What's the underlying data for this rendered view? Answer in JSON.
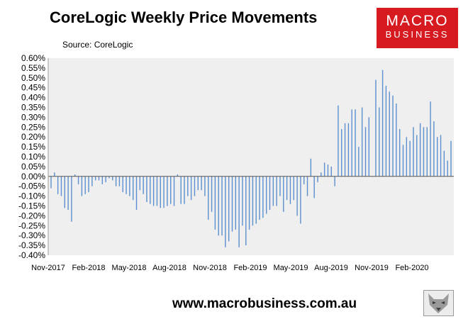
{
  "title": "CoreLogic Weekly Price Movements",
  "source": "Source: CoreLogic",
  "logo": {
    "line1": "MACRO",
    "line2": "BUSINESS",
    "color": "#d71920"
  },
  "footer_url": "www.macrobusiness.com.au",
  "footer_icon": "wolf-icon",
  "chart_data": {
    "type": "bar",
    "ylim": [
      -0.4,
      0.6
    ],
    "y_ticks": [
      "0.60%",
      "0.55%",
      "0.50%",
      "0.45%",
      "0.40%",
      "0.35%",
      "0.30%",
      "0.25%",
      "0.20%",
      "0.15%",
      "0.10%",
      "0.05%",
      "0.00%",
      "-0.05%",
      "-0.10%",
      "-0.15%",
      "-0.20%",
      "-0.25%",
      "-0.30%",
      "-0.35%",
      "-0.40%"
    ],
    "x_ticks": [
      "Nov-2017",
      "Feb-2018",
      "May-2018",
      "Aug-2018",
      "Nov-2018",
      "Feb-2019",
      "May-2019",
      "Aug-2019",
      "Nov-2019",
      "Feb-2020"
    ],
    "bar_color": "#5b8fd0",
    "plot_background": "#efefef",
    "grid": false,
    "values": [
      -0.06,
      0.02,
      -0.09,
      -0.1,
      -0.16,
      -0.17,
      -0.23,
      0.01,
      -0.04,
      -0.1,
      -0.09,
      -0.08,
      -0.05,
      -0.02,
      -0.02,
      -0.04,
      -0.03,
      -0.01,
      -0.02,
      -0.05,
      -0.05,
      -0.08,
      -0.09,
      -0.1,
      -0.12,
      -0.17,
      -0.07,
      -0.09,
      -0.13,
      -0.14,
      -0.15,
      -0.15,
      -0.16,
      -0.16,
      -0.15,
      -0.14,
      -0.15,
      0.01,
      -0.14,
      -0.14,
      -0.1,
      -0.12,
      -0.1,
      -0.07,
      -0.07,
      -0.1,
      -0.22,
      -0.18,
      -0.27,
      -0.3,
      -0.3,
      -0.36,
      -0.33,
      -0.28,
      -0.27,
      -0.36,
      -0.25,
      -0.35,
      -0.27,
      -0.25,
      -0.24,
      -0.22,
      -0.21,
      -0.19,
      -0.17,
      -0.15,
      -0.15,
      -0.1,
      -0.18,
      -0.12,
      -0.14,
      -0.12,
      -0.2,
      -0.24,
      -0.04,
      -0.1,
      0.09,
      -0.11,
      -0.03,
      0.02,
      0.07,
      0.06,
      0.05,
      -0.05,
      0.36,
      0.24,
      0.27,
      0.27,
      0.34,
      0.34,
      0.15,
      0.35,
      0.25,
      0.3,
      0.0,
      0.49,
      0.35,
      0.54,
      0.46,
      0.43,
      0.41,
      0.37,
      0.24,
      0.16,
      0.2,
      0.18,
      0.25,
      0.21,
      0.27,
      0.25,
      0.25,
      0.38,
      0.28,
      0.2,
      0.21,
      0.13,
      0.08,
      0.18
    ]
  }
}
